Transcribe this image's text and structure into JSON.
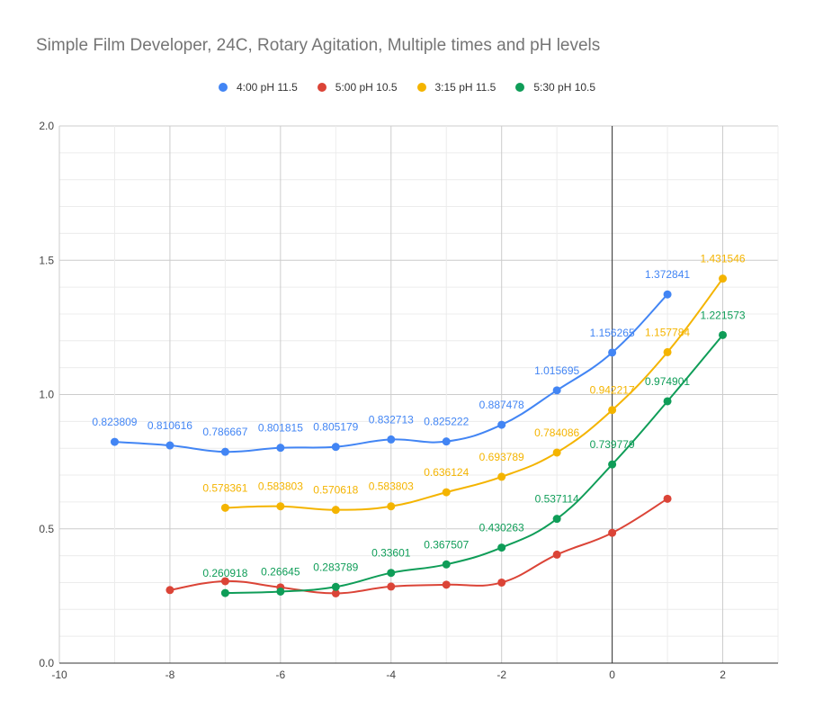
{
  "chart_data": {
    "type": "line",
    "title": "Simple Film Developer, 24C, Rotary Agitation, Multiple times and pH levels",
    "xlabel": "",
    "ylabel": "",
    "xlim": [
      -10,
      3
    ],
    "ylim": [
      0,
      2
    ],
    "x_ticks": [
      "-10",
      "-8",
      "-6",
      "-4",
      "-2",
      "0",
      "2"
    ],
    "y_ticks": [
      "0.0",
      "0.5",
      "1.0",
      "1.5",
      "2.0"
    ],
    "grid": true,
    "legend_position": "top",
    "series": [
      {
        "name": "4:00 pH 11.5",
        "color": "#4285f4",
        "points": [
          {
            "x": -9,
            "y": 0.823809,
            "label": "0.823809"
          },
          {
            "x": -8,
            "y": 0.810616,
            "label": "0.810616"
          },
          {
            "x": -7,
            "y": 0.786667,
            "label": "0.786667"
          },
          {
            "x": -6,
            "y": 0.801815,
            "label": "0.801815"
          },
          {
            "x": -5,
            "y": 0.805179,
            "label": "0.805179"
          },
          {
            "x": -4,
            "y": 0.832713,
            "label": "0.832713"
          },
          {
            "x": -3,
            "y": 0.825222,
            "label": "0.825222"
          },
          {
            "x": -2,
            "y": 0.887478,
            "label": "0.887478"
          },
          {
            "x": -1,
            "y": 1.015695,
            "label": "1.015695"
          },
          {
            "x": 0,
            "y": 1.156265,
            "label": "1.156265"
          },
          {
            "x": 1,
            "y": 1.372841,
            "label": "1.372841"
          }
        ]
      },
      {
        "name": "5:00 pH 10.5",
        "color": "#db4437",
        "points": [
          {
            "x": -8,
            "y": 0.272
          },
          {
            "x": -7,
            "y": 0.305
          },
          {
            "x": -6,
            "y": 0.282
          },
          {
            "x": -5,
            "y": 0.26
          },
          {
            "x": -4,
            "y": 0.285
          },
          {
            "x": -3,
            "y": 0.292
          },
          {
            "x": -2,
            "y": 0.3
          },
          {
            "x": -1,
            "y": 0.404
          },
          {
            "x": 0,
            "y": 0.485
          },
          {
            "x": 1,
            "y": 0.612
          }
        ]
      },
      {
        "name": "3:15 pH 11.5",
        "color": "#f4b400",
        "points": [
          {
            "x": -7,
            "y": 0.578361,
            "label": "0.578361"
          },
          {
            "x": -6,
            "y": 0.583803,
            "label": "0.583803"
          },
          {
            "x": -5,
            "y": 0.570618,
            "label": "0.570618"
          },
          {
            "x": -4,
            "y": 0.583803,
            "label": "0.583803"
          },
          {
            "x": -3,
            "y": 0.636124,
            "label": "0.636124"
          },
          {
            "x": -2,
            "y": 0.693789,
            "label": "0.693789"
          },
          {
            "x": -1,
            "y": 0.784086,
            "label": "0.784086"
          },
          {
            "x": 0,
            "y": 0.942217,
            "label": "0.942217"
          },
          {
            "x": 1,
            "y": 1.157784,
            "label": "1.157784"
          },
          {
            "x": 2,
            "y": 1.431546,
            "label": "1.431546"
          }
        ]
      },
      {
        "name": "5:30 pH 10.5",
        "color": "#0f9d58",
        "points": [
          {
            "x": -7,
            "y": 0.260918,
            "label": "0.260918"
          },
          {
            "x": -6,
            "y": 0.26645,
            "label": "0.26645"
          },
          {
            "x": -5,
            "y": 0.283789,
            "label": "0.283789"
          },
          {
            "x": -4,
            "y": 0.33601,
            "label": "0.33601"
          },
          {
            "x": -3,
            "y": 0.367507,
            "label": "0.367507"
          },
          {
            "x": -2,
            "y": 0.430263,
            "label": "0.430263"
          },
          {
            "x": -1,
            "y": 0.537114,
            "label": "0.537114"
          },
          {
            "x": 0,
            "y": 0.739779,
            "label": "0.739779"
          },
          {
            "x": 1,
            "y": 0.974901,
            "label": "0.974901"
          },
          {
            "x": 2,
            "y": 1.221573,
            "label": "1.221573"
          }
        ]
      }
    ]
  }
}
